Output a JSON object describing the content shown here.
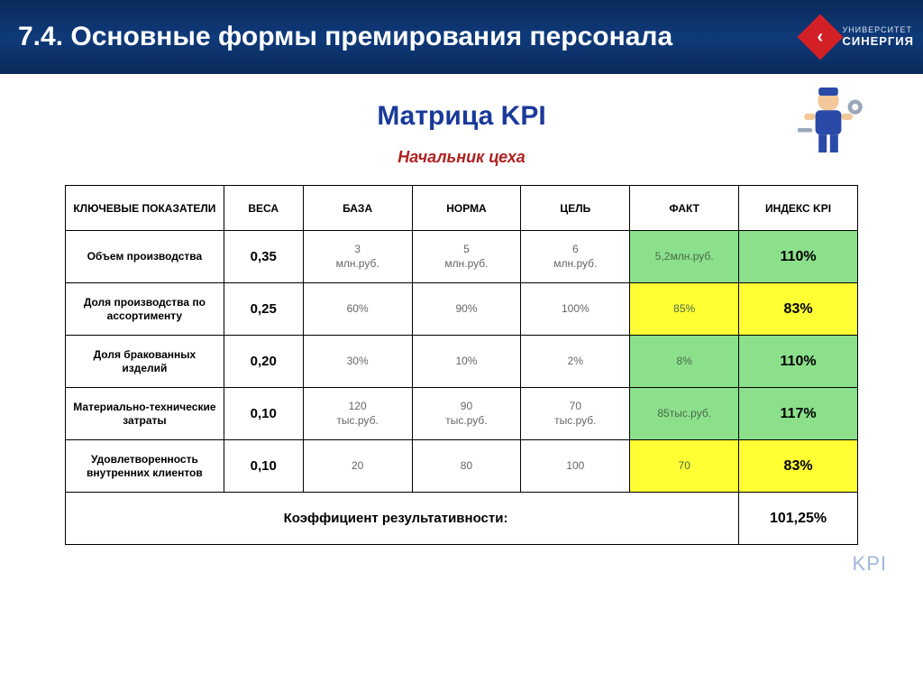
{
  "header": {
    "title": "7.4. Основные формы премирования персонала",
    "logo_top": "УНИВЕРСИТЕТ",
    "logo_bottom": "СИНЕРГИЯ"
  },
  "main_title": "Матрица KPI",
  "subtitle": "Начальник цеха",
  "columns": {
    "key": "КЛЮЧЕВЫЕ ПОКАЗАТЕЛИ",
    "weight": "ВЕСА",
    "base": "БАЗА",
    "norm": "НОРМА",
    "goal": "ЦЕЛЬ",
    "fact": "ФАКТ",
    "index": "ИНДЕКС KPI"
  },
  "rows": [
    {
      "label": "Объем производства",
      "weight": "0,35",
      "base": {
        "num": "3",
        "unit": "млн.руб."
      },
      "norm": {
        "num": "5",
        "unit": "млн.руб."
      },
      "goal": {
        "num": "6",
        "unit": "млн.руб."
      },
      "fact": {
        "num": "5,2",
        "unit": "млн.руб."
      },
      "fact_bg": "bg-green",
      "index": "110%",
      "index_bg": "bg-green"
    },
    {
      "label": "Доля производства по ассортименту",
      "weight": "0,25",
      "base": {
        "num": "60%",
        "unit": ""
      },
      "norm": {
        "num": "90%",
        "unit": ""
      },
      "goal": {
        "num": "100%",
        "unit": ""
      },
      "fact": {
        "num": "85%",
        "unit": ""
      },
      "fact_bg": "bg-yellow",
      "index": "83%",
      "index_bg": "bg-yellow"
    },
    {
      "label": "Доля бракованных изделий",
      "weight": "0,20",
      "base": {
        "num": "30%",
        "unit": ""
      },
      "norm": {
        "num": "10%",
        "unit": ""
      },
      "goal": {
        "num": "2%",
        "unit": ""
      },
      "fact": {
        "num": "8%",
        "unit": ""
      },
      "fact_bg": "bg-green",
      "index": "110%",
      "index_bg": "bg-green"
    },
    {
      "label": "Материально-технические затраты",
      "weight": "0,10",
      "base": {
        "num": "120",
        "unit": "тыс.руб."
      },
      "norm": {
        "num": "90",
        "unit": "тыс.руб."
      },
      "goal": {
        "num": "70",
        "unit": "тыс.руб."
      },
      "fact": {
        "num": "85",
        "unit": "тыс.руб."
      },
      "fact_bg": "bg-green",
      "index": "117%",
      "index_bg": "bg-green"
    },
    {
      "label": "Удовлетворенность внутренних клиентов",
      "weight": "0,10",
      "base": {
        "num": "20",
        "unit": ""
      },
      "norm": {
        "num": "80",
        "unit": ""
      },
      "goal": {
        "num": "100",
        "unit": ""
      },
      "fact": {
        "num": "70",
        "unit": ""
      },
      "fact_bg": "bg-yellow",
      "index": "83%",
      "index_bg": "bg-yellow"
    }
  ],
  "total": {
    "label": "Коэффициент результативности:",
    "value": "101,25%"
  },
  "footer_mark": "KPI",
  "colors": {
    "header_bg": "#0e3a7a",
    "title_color": "#1a3a9a",
    "subtitle_color": "#b02020",
    "green": "#8ce08c",
    "yellow": "#ffff33",
    "logo_red": "#d32027"
  }
}
